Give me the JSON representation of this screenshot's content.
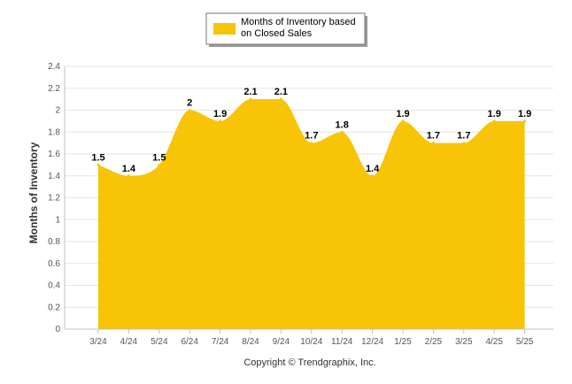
{
  "legend": {
    "line1": "Months of Inventory based",
    "line2": "on Closed Sales"
  },
  "credit": "Copyright © Trendgraphix, Inc.",
  "colors": {
    "fill": "#F7C407",
    "grid": "#e6e6e6",
    "axis": "#c0c0c0"
  },
  "chart_data": {
    "type": "area",
    "ylabel": "Months of Inventory",
    "xlabel": "",
    "ylim": [
      0,
      2.4
    ],
    "yticks": [
      "0",
      "0.2",
      "0.4",
      "0.6",
      "0.8",
      "1",
      "1.2",
      "1.4",
      "1.6",
      "1.8",
      "2",
      "2.2",
      "2.4"
    ],
    "categories": [
      "3/24",
      "4/24",
      "5/24",
      "6/24",
      "7/24",
      "8/24",
      "9/24",
      "10/24",
      "11/24",
      "12/24",
      "1/25",
      "2/25",
      "3/25",
      "4/25",
      "5/25"
    ],
    "series": [
      {
        "name": "Months of Inventory based on Closed Sales",
        "values": [
          1.5,
          1.4,
          1.5,
          2,
          1.9,
          2.1,
          2.1,
          1.7,
          1.8,
          1.4,
          1.9,
          1.7,
          1.7,
          1.9,
          1.9
        ],
        "labels": [
          "1.5",
          "1.4",
          "1.5",
          "2",
          "1.9",
          "2.1",
          "2.1",
          "1.7",
          "1.8",
          "1.4",
          "1.9",
          "1.7",
          "1.7",
          "1.9",
          "1.9"
        ]
      }
    ],
    "grid": true,
    "legend_position": "top-center"
  }
}
